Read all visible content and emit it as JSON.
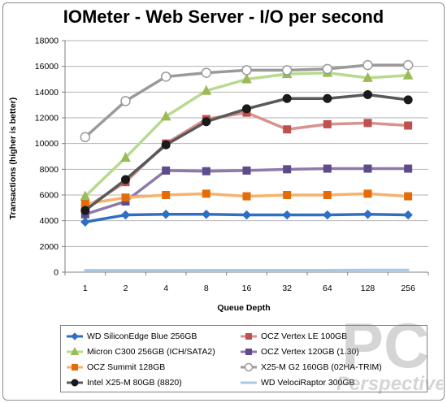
{
  "chart_data": {
    "type": "line",
    "title": "IOMeter - Web Server - I/O per second",
    "xlabel": "Queue Depth",
    "ylabel": "Transactions (higher is better)",
    "ylim": [
      0,
      18000
    ],
    "yticks": [
      "0",
      "2000",
      "4000",
      "6000",
      "8000",
      "10000",
      "12000",
      "14000",
      "16000",
      "18000"
    ],
    "categories": [
      "1",
      "2",
      "4",
      "8",
      "16",
      "32",
      "64",
      "128",
      "256"
    ],
    "grid": true,
    "legend_position": "bottom",
    "series": [
      {
        "name": "WD SiliconEdge Blue 256GB",
        "color": "#2e6fc4",
        "marker": "diamond",
        "values": [
          3900,
          4450,
          4500,
          4500,
          4450,
          4450,
          4450,
          4500,
          4450
        ]
      },
      {
        "name": "OCZ Vertex LE 100GB",
        "color": "#d9928e",
        "markerColor": "#c0504d",
        "marker": "square",
        "values": [
          5000,
          7000,
          10000,
          11900,
          12400,
          11100,
          11500,
          11600,
          11400
        ]
      },
      {
        "name": "Micron C300 256GB (ICH/SATA2)",
        "color": "#b8d98e",
        "markerColor": "#9bbb59",
        "marker": "triangle",
        "values": [
          5900,
          8900,
          12100,
          14100,
          15000,
          15400,
          15500,
          15100,
          15300
        ]
      },
      {
        "name": "OCZ Vertex 120GB (1.30)",
        "color": "#8e79ab",
        "markerColor": "#5f4b8b",
        "marker": "square",
        "values": [
          4500,
          5500,
          7900,
          7850,
          7900,
          8000,
          8050,
          8050,
          8050
        ]
      },
      {
        "name": "OCZ Summit 128GB",
        "color": "#f7b26b",
        "markerColor": "#e36c09",
        "marker": "square",
        "values": [
          5300,
          5800,
          6000,
          6100,
          5900,
          6000,
          6000,
          6100,
          5900
        ]
      },
      {
        "name": "X25-M G2 160GB (02HA-TRIM)",
        "color": "#9a9a9a",
        "markerColor": "#ffffff",
        "marker": "circle-open",
        "values": [
          10500,
          13300,
          15200,
          15500,
          15700,
          15700,
          15800,
          16100,
          16100
        ]
      },
      {
        "name": "Intel X25-M 80GB (8820)",
        "color": "#595959",
        "markerColor": "#1a1a1a",
        "marker": "circle",
        "values": [
          4800,
          7200,
          9900,
          11700,
          12700,
          13500,
          13500,
          13800,
          13400
        ]
      },
      {
        "name": "WD VelociRaptor 300GB",
        "color": "#a6c8e8",
        "marker": "none",
        "values": [
          150,
          150,
          150,
          160,
          160,
          160,
          160,
          170,
          170
        ]
      }
    ]
  },
  "watermark": {
    "line1": "PC",
    "line2": "Perspective"
  }
}
